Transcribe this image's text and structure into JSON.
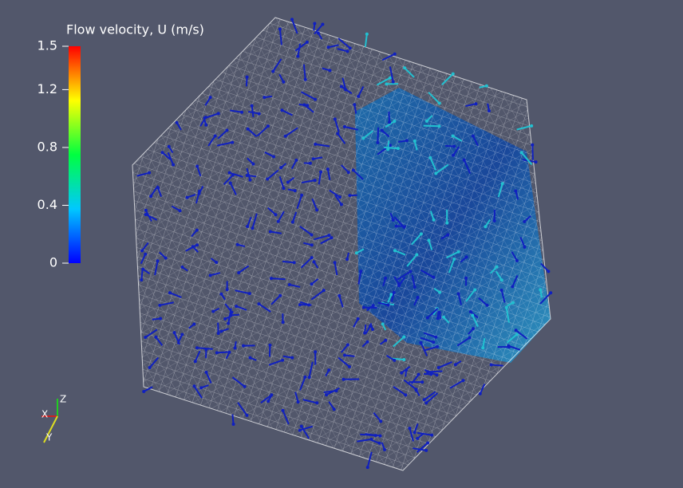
{
  "colorbar": {
    "title": "Flow velocity, U (m/s)",
    "range": [
      0,
      1.5
    ],
    "ticks": [
      0,
      0.4,
      0.8,
      1.2,
      1.5
    ]
  },
  "axes_triad": {
    "x": "X",
    "y": "Y",
    "z": "Z"
  }
}
